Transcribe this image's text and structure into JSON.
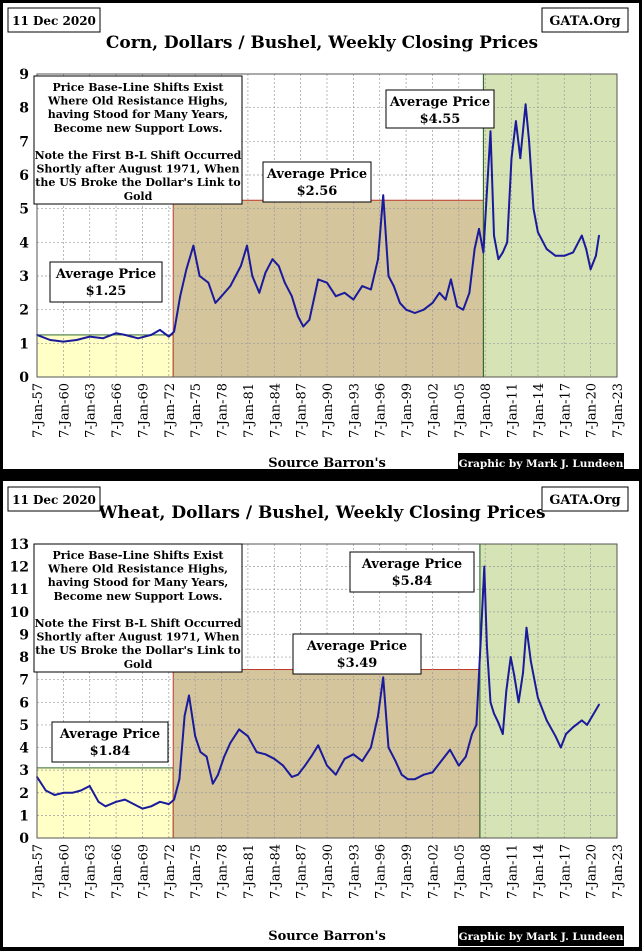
{
  "chart_data": [
    {
      "type": "line",
      "date_tag": "11 Dec 2020",
      "site_tag": "GATA.Org",
      "title": "Corn, Dollars / Bushel, Weekly Closing Prices",
      "xlabel": "Source Barron's",
      "credit": "Graphic by Mark J. Lundeen",
      "ylim": [
        0,
        9
      ],
      "yticks": [
        0,
        1,
        2,
        3,
        4,
        5,
        6,
        7,
        8,
        9
      ],
      "x_range": [
        1957.0,
        2023.0
      ],
      "x_ticks": [
        {
          "year": 1957,
          "label": "7-Jan-57"
        },
        {
          "year": 1960,
          "label": "7-Jan-60"
        },
        {
          "year": 1963,
          "label": "7-Jan-63"
        },
        {
          "year": 1966,
          "label": "7-Jan-66"
        },
        {
          "year": 1969,
          "label": "7-Jan-69"
        },
        {
          "year": 1972,
          "label": "7-Jan-72"
        },
        {
          "year": 1975,
          "label": "7-Jan-75"
        },
        {
          "year": 1978,
          "label": "7-Jan-78"
        },
        {
          "year": 1981,
          "label": "7-Jan-81"
        },
        {
          "year": 1984,
          "label": "7-Jan-84"
        },
        {
          "year": 1987,
          "label": "7-Jan-87"
        },
        {
          "year": 1990,
          "label": "7-Jan-90"
        },
        {
          "year": 1993,
          "label": "7-Jan-93"
        },
        {
          "year": 1996,
          "label": "7-Jan-96"
        },
        {
          "year": 1999,
          "label": "7-Jan-99"
        },
        {
          "year": 2002,
          "label": "7-Jan-02"
        },
        {
          "year": 2005,
          "label": "7-Jan-05"
        },
        {
          "year": 2008,
          "label": "7-Jan-08"
        },
        {
          "year": 2011,
          "label": "7-Jan-11"
        },
        {
          "year": 2014,
          "label": "7-Jan-14"
        },
        {
          "year": 2017,
          "label": "7-Jan-17"
        },
        {
          "year": 2020,
          "label": "7-Jan-20"
        },
        {
          "year": 2023,
          "label": "7-Jan-23"
        }
      ],
      "regions": [
        {
          "x0": 1957.0,
          "x1": 1972.5,
          "average": 1.25,
          "fill": "#ffffc6",
          "label": "Average Price",
          "value_label": "$1.25"
        },
        {
          "x0": 1972.5,
          "x1": 2007.8,
          "average": 5.25,
          "fill": "#d4c59c",
          "label": "Average Price",
          "value_label": "$2.56"
        },
        {
          "x0": 2007.8,
          "x1": 2023.0,
          "average": 9.0,
          "fill": "#d6e3b4",
          "label": "Average Price",
          "value_label": "$4.55"
        }
      ],
      "note_lines": [
        "Price Base-Line Shifts Exist",
        "Where Old Resistance Highs,",
        "having Stood for Many Years,",
        "Become new Support Lows.",
        "",
        "Note the First B-L Shift Occurred",
        "Shortly after August 1971, When",
        "the US Broke the Dollar's Link to",
        "Gold"
      ],
      "series": [
        {
          "color": "#1a1a9c",
          "x": [
            1957.0,
            1958.5,
            1960.0,
            1961.5,
            1963.0,
            1964.5,
            1966.0,
            1967.0,
            1968.5,
            1970.0,
            1971.0,
            1972.0,
            1972.6,
            1973.3,
            1974.0,
            1974.8,
            1975.5,
            1976.5,
            1977.3,
            1978.0,
            1979.0,
            1980.2,
            1980.9,
            1981.5,
            1982.3,
            1983.0,
            1983.8,
            1984.5,
            1985.2,
            1986.0,
            1986.7,
            1987.3,
            1988.0,
            1988.5,
            1989.0,
            1990.0,
            1991.0,
            1992.0,
            1993.0,
            1994.0,
            1995.0,
            1995.8,
            1996.4,
            1997.0,
            1997.6,
            1998.3,
            1999.0,
            2000.0,
            2001.0,
            2002.0,
            2002.8,
            2003.5,
            2004.1,
            2004.8,
            2005.5,
            2006.2,
            2006.8,
            2007.3,
            2007.8,
            2008.2,
            2008.6,
            2009.0,
            2009.5,
            2010.0,
            2010.5,
            2011.0,
            2011.5,
            2012.0,
            2012.6,
            2013.0,
            2013.5,
            2014.0,
            2015.0,
            2016.0,
            2017.0,
            2018.0,
            2019.0,
            2019.5,
            2020.0,
            2020.6,
            2020.95
          ],
          "values": [
            1.25,
            1.1,
            1.05,
            1.1,
            1.2,
            1.15,
            1.3,
            1.25,
            1.15,
            1.25,
            1.4,
            1.2,
            1.35,
            2.4,
            3.2,
            3.9,
            3.0,
            2.8,
            2.2,
            2.4,
            2.7,
            3.3,
            3.9,
            3.0,
            2.5,
            3.1,
            3.5,
            3.3,
            2.8,
            2.4,
            1.8,
            1.5,
            1.7,
            2.3,
            2.9,
            2.8,
            2.4,
            2.5,
            2.3,
            2.7,
            2.6,
            3.5,
            5.4,
            3.0,
            2.7,
            2.2,
            2.0,
            1.9,
            2.0,
            2.2,
            2.5,
            2.3,
            2.9,
            2.1,
            2.0,
            2.5,
            3.8,
            4.4,
            3.7,
            5.5,
            7.3,
            4.2,
            3.5,
            3.7,
            4.0,
            6.5,
            7.6,
            6.5,
            8.1,
            7.0,
            5.0,
            4.3,
            3.8,
            3.6,
            3.6,
            3.7,
            4.2,
            3.8,
            3.2,
            3.6,
            4.2
          ]
        }
      ]
    },
    {
      "type": "line",
      "date_tag": "11 Dec 2020",
      "site_tag": "GATA.Org",
      "title": "Wheat, Dollars / Bushel, Weekly Closing Prices",
      "xlabel": "Source Barron's",
      "credit": "Graphic by Mark J. Lundeen",
      "ylim": [
        0,
        13
      ],
      "yticks": [
        0,
        1,
        2,
        3,
        4,
        5,
        6,
        7,
        8,
        9,
        10,
        11,
        12,
        13
      ],
      "x_range": [
        1957.0,
        2023.0
      ],
      "x_ticks": [
        {
          "year": 1957,
          "label": "7-Jan-57"
        },
        {
          "year": 1960,
          "label": "7-Jan-60"
        },
        {
          "year": 1963,
          "label": "7-Jan-63"
        },
        {
          "year": 1966,
          "label": "7-Jan-66"
        },
        {
          "year": 1969,
          "label": "7-Jan-69"
        },
        {
          "year": 1972,
          "label": "7-Jan-72"
        },
        {
          "year": 1975,
          "label": "7-Jan-75"
        },
        {
          "year": 1978,
          "label": "7-Jan-78"
        },
        {
          "year": 1981,
          "label": "7-Jan-81"
        },
        {
          "year": 1984,
          "label": "7-Jan-84"
        },
        {
          "year": 1987,
          "label": "7-Jan-87"
        },
        {
          "year": 1990,
          "label": "7-Jan-90"
        },
        {
          "year": 1993,
          "label": "7-Jan-93"
        },
        {
          "year": 1996,
          "label": "7-Jan-96"
        },
        {
          "year": 1999,
          "label": "7-Jan-99"
        },
        {
          "year": 2002,
          "label": "7-Jan-02"
        },
        {
          "year": 2005,
          "label": "7-Jan-05"
        },
        {
          "year": 2008,
          "label": "7-Jan-08"
        },
        {
          "year": 2011,
          "label": "7-Jan-11"
        },
        {
          "year": 2014,
          "label": "7-Jan-14"
        },
        {
          "year": 2017,
          "label": "7-Jan-17"
        },
        {
          "year": 2020,
          "label": "7-Jan-20"
        },
        {
          "year": 2023,
          "label": "7-Jan-23"
        }
      ],
      "regions": [
        {
          "x0": 1957.0,
          "x1": 1972.5,
          "average": 3.1,
          "fill": "#ffffc6",
          "label": "Average Price",
          "value_label": "$1.84"
        },
        {
          "x0": 1972.5,
          "x1": 2007.4,
          "average": 7.45,
          "fill": "#d4c59c",
          "label": "Average Price",
          "value_label": "$3.49"
        },
        {
          "x0": 2007.4,
          "x1": 2023.0,
          "average": 13.0,
          "fill": "#d6e3b4",
          "label": "Average Price",
          "value_label": "$5.84"
        }
      ],
      "note_lines": [
        "Price Base-Line Shifts Exist",
        "Where Old Resistance Highs,",
        "having Stood for Many Years,",
        "Become new Support Lows.",
        "",
        "Note the First B-L Shift Occurred",
        "Shortly after August 1971, When",
        "the US Broke the Dollar's Link to",
        "Gold"
      ],
      "series": [
        {
          "color": "#1a1a9c",
          "x": [
            1957.0,
            1958.0,
            1959.0,
            1960.0,
            1961.0,
            1962.0,
            1963.0,
            1964.0,
            1964.8,
            1966.0,
            1967.0,
            1968.0,
            1969.0,
            1970.0,
            1971.0,
            1972.0,
            1972.6,
            1973.2,
            1973.8,
            1974.3,
            1975.0,
            1975.6,
            1976.3,
            1977.0,
            1977.6,
            1978.3,
            1979.0,
            1980.0,
            1981.0,
            1982.0,
            1983.0,
            1984.0,
            1985.0,
            1986.0,
            1986.7,
            1987.5,
            1988.2,
            1989.0,
            1990.0,
            1991.0,
            1992.0,
            1993.0,
            1994.0,
            1995.0,
            1995.8,
            1996.4,
            1997.0,
            1997.8,
            1998.5,
            1999.2,
            2000.0,
            2001.0,
            2002.0,
            2003.0,
            2004.0,
            2005.0,
            2005.8,
            2006.5,
            2007.0,
            2007.5,
            2007.9,
            2008.2,
            2008.6,
            2009.0,
            2009.5,
            2010.0,
            2010.4,
            2010.9,
            2011.3,
            2011.8,
            2012.3,
            2012.7,
            2013.2,
            2014.0,
            2015.0,
            2016.0,
            2016.6,
            2017.2,
            2018.0,
            2019.0,
            2019.6,
            2020.2,
            2020.95
          ],
          "values": [
            2.7,
            2.1,
            1.9,
            2.0,
            2.0,
            2.1,
            2.3,
            1.6,
            1.4,
            1.6,
            1.7,
            1.5,
            1.3,
            1.4,
            1.6,
            1.5,
            1.7,
            2.6,
            5.4,
            6.3,
            4.5,
            3.8,
            3.6,
            2.4,
            2.8,
            3.6,
            4.2,
            4.8,
            4.5,
            3.8,
            3.7,
            3.5,
            3.2,
            2.7,
            2.8,
            3.2,
            3.6,
            4.1,
            3.2,
            2.8,
            3.5,
            3.7,
            3.4,
            4.0,
            5.4,
            7.1,
            4.0,
            3.4,
            2.8,
            2.6,
            2.6,
            2.8,
            2.9,
            3.4,
            3.9,
            3.2,
            3.6,
            4.6,
            5.0,
            8.8,
            12.0,
            8.5,
            6.0,
            5.5,
            5.1,
            4.6,
            6.5,
            8.0,
            7.2,
            6.0,
            7.3,
            9.3,
            7.8,
            6.2,
            5.2,
            4.5,
            4.0,
            4.6,
            4.9,
            5.2,
            5.0,
            5.4,
            5.9
          ]
        }
      ]
    }
  ]
}
